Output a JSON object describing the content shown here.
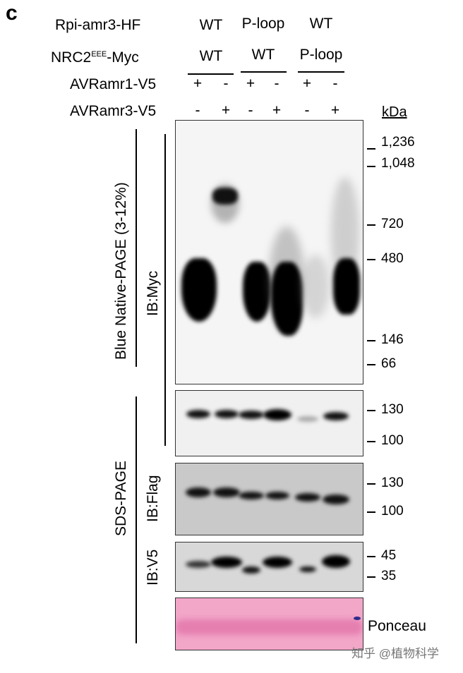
{
  "panel_label": "c",
  "rows": [
    {
      "label": "Rpi-amr3-HF",
      "groups": [
        "WT",
        "P-loop",
        "WT"
      ]
    },
    {
      "label": "NRC2",
      "label_sup": "EEE",
      "label_suffix": "-Myc",
      "groups": [
        "WT",
        "WT",
        "P-loop"
      ]
    },
    {
      "label": "AVRamr1-V5",
      "lanes": [
        "+",
        "-",
        "+",
        "-",
        "+",
        "-"
      ]
    },
    {
      "label": "AVRamr3-V5",
      "lanes": [
        "-",
        "+",
        "-",
        "+",
        "-",
        "+"
      ]
    }
  ],
  "unit": "kDa",
  "section_labels": {
    "native": "Blue Native-PAGE (3-12%)",
    "sds": "SDS-PAGE"
  },
  "blots": [
    {
      "label": "IB:Myc",
      "markers": [
        "1,236",
        "1,048",
        "720",
        "480",
        "146",
        "66"
      ]
    },
    {
      "label": "",
      "markers": [
        "130",
        "100"
      ]
    },
    {
      "label": "IB:Flag",
      "markers": [
        "130",
        "100"
      ]
    },
    {
      "label": "IB:V5",
      "markers": [
        "45",
        "35"
      ]
    },
    {
      "label": "Ponceau",
      "markers": []
    }
  ],
  "watermark": "知乎 @植物科学",
  "colors": {
    "ponceau": "#f2a6c8",
    "flag_bg": "#c9c9c9",
    "v5_bg": "#d8d8d8"
  }
}
